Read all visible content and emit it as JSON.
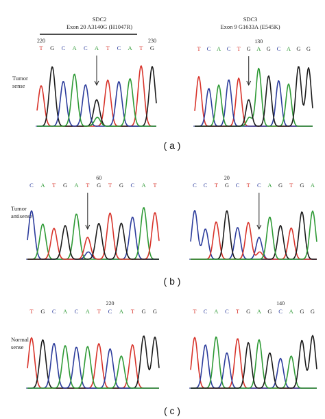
{
  "colors": {
    "A": "#2e9a35",
    "C": "#2c3c9c",
    "G": "#1a1a1a",
    "T": "#d8332a"
  },
  "columns": [
    {
      "gene": "SDC2",
      "mutation": "Exon 20 A3140G (H1047R)"
    },
    {
      "gene": "SDC3",
      "mutation": "Exon 9 G1633A (E545K)"
    }
  ],
  "rows": [
    {
      "label_lines": [
        "Tumor",
        "sense"
      ],
      "caption": "( a )"
    },
    {
      "label_lines": [
        "Tumor",
        "antisense"
      ],
      "caption": "( b )"
    },
    {
      "label_lines": [
        "Normal",
        "sense"
      ],
      "caption": "( c )"
    }
  ],
  "panels": [
    {
      "id": "a-left",
      "sequence": "TGCACATCATG",
      "positions": [
        {
          "text": "220",
          "index": 0
        },
        {
          "text": "230",
          "index": 10
        }
      ],
      "arrow_index": 5,
      "mutant_peaks": [
        "G",
        "A"
      ]
    },
    {
      "id": "a-right",
      "sequence": "TCACTGAGCAGG",
      "positions": [
        {
          "text": "130",
          "index": 6
        }
      ],
      "arrow_index": 5,
      "mutant_peaks": [
        "G",
        "A"
      ]
    },
    {
      "id": "b-left",
      "sequence": "CATGATGTGCAT",
      "positions": [
        {
          "text": "60",
          "index": 6
        }
      ],
      "arrow_index": 5,
      "mutant_peaks": [
        "T",
        "C"
      ]
    },
    {
      "id": "b-right",
      "sequence": "CCTGCTCAGTGA",
      "positions": [
        {
          "text": "20",
          "index": 3
        }
      ],
      "arrow_index": 6,
      "mutant_peaks": [
        "C",
        "T"
      ]
    },
    {
      "id": "c-left",
      "sequence": "TGCACATCATGG",
      "positions": [
        {
          "text": "220",
          "index": 7
        }
      ],
      "arrow_index": null,
      "mutant_peaks": null
    },
    {
      "id": "c-right",
      "sequence": "TCACTGAGCAGG",
      "positions": [
        {
          "text": "140",
          "index": 8
        }
      ],
      "arrow_index": null,
      "mutant_peaks": null
    }
  ]
}
